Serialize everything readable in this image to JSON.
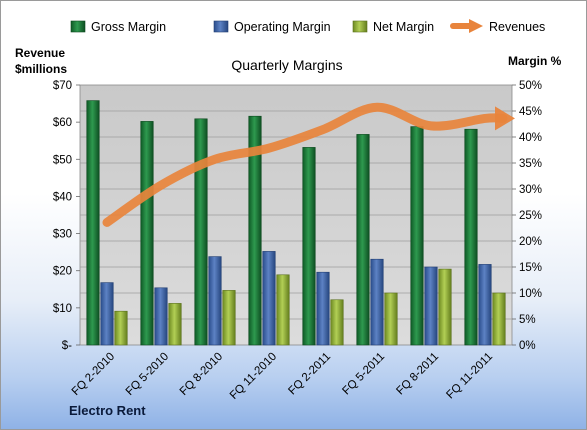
{
  "chart_data": {
    "type": "bar",
    "title": "Quarterly Margins",
    "categories": [
      "FQ 2-2010",
      "FQ 5-2010",
      "FQ 8-2010",
      "FQ 11-2010",
      "FQ 2-2011",
      "FQ 5-2011",
      "FQ 8-2011",
      "FQ 11-2011"
    ],
    "series": [
      {
        "name": "Gross Margin",
        "axis": "right",
        "color": "#1e7a3a",
        "values": [
          0.47,
          0.43,
          0.435,
          0.44,
          0.38,
          0.405,
          0.42,
          0.415
        ]
      },
      {
        "name": "Operating Margin",
        "axis": "right",
        "color": "#3f64a8",
        "values": [
          0.12,
          0.11,
          0.17,
          0.18,
          0.14,
          0.165,
          0.15,
          0.155
        ]
      },
      {
        "name": "Net Margin",
        "axis": "right",
        "color": "#9bbb3c",
        "values": [
          0.065,
          0.08,
          0.105,
          0.135,
          0.087,
          0.1,
          0.146,
          0.1
        ]
      },
      {
        "name": "Revenues",
        "axis": "left",
        "type": "line",
        "color": "#e8843c",
        "values": [
          33,
          43,
          50,
          53,
          58,
          64,
          59,
          61
        ]
      }
    ],
    "left_axis": {
      "label_line1": "Revenue",
      "label_line2": "$millions",
      "range": [
        0,
        70
      ],
      "ticks": [
        "$-",
        "$10",
        "$20",
        "$30",
        "$40",
        "$50",
        "$60",
        "$70"
      ]
    },
    "right_axis": {
      "label": "Margin %",
      "range": [
        0,
        0.5
      ],
      "ticks": [
        "0%",
        "5%",
        "10%",
        "15%",
        "20%",
        "25%",
        "30%",
        "35%",
        "40%",
        "45%",
        "50%"
      ]
    },
    "grid": true,
    "legend_position": "top",
    "caption": "Electro Rent"
  }
}
